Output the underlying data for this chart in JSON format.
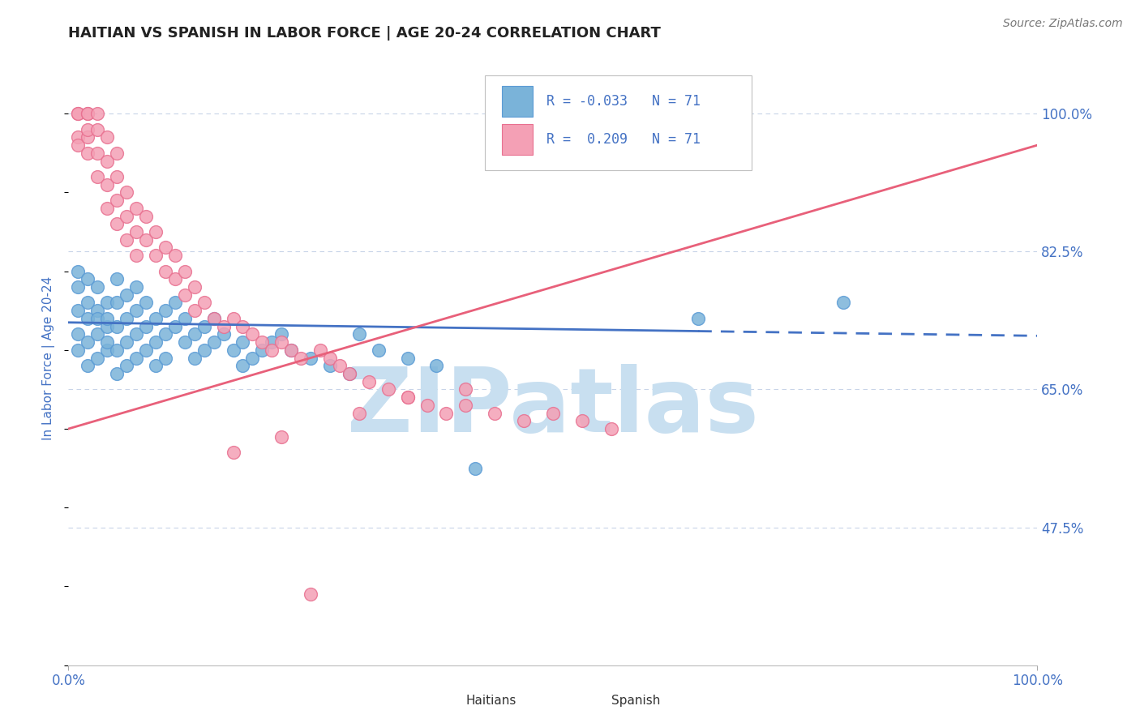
{
  "title": "HAITIAN VS SPANISH IN LABOR FORCE | AGE 20-24 CORRELATION CHART",
  "source_text": "Source: ZipAtlas.com",
  "ylabel": "In Labor Force | Age 20-24",
  "xlim": [
    0.0,
    1.0
  ],
  "ylim": [
    0.3,
    1.08
  ],
  "yticks": [
    0.475,
    0.65,
    0.825,
    1.0
  ],
  "ytick_labels": [
    "47.5%",
    "65.0%",
    "82.5%",
    "100.0%"
  ],
  "xticks": [
    0.0,
    1.0
  ],
  "xtick_labels": [
    "0.0%",
    "100.0%"
  ],
  "haitian_color": "#7ab3d9",
  "haitian_edge_color": "#5b9bd5",
  "spanish_color": "#f4a0b5",
  "spanish_edge_color": "#e87090",
  "haitian_line_color": "#4472c4",
  "spanish_line_color": "#e8607a",
  "watermark": "ZIPatlas",
  "watermark_color": "#c8dff0",
  "title_color": "#222222",
  "tick_label_color": "#4472c4",
  "background_color": "#ffffff",
  "grid_color": "#c8d4e8",
  "haitian_x": [
    0.01,
    0.01,
    0.01,
    0.01,
    0.01,
    0.02,
    0.02,
    0.02,
    0.02,
    0.02,
    0.03,
    0.03,
    0.03,
    0.03,
    0.03,
    0.04,
    0.04,
    0.04,
    0.04,
    0.04,
    0.05,
    0.05,
    0.05,
    0.05,
    0.05,
    0.06,
    0.06,
    0.06,
    0.06,
    0.07,
    0.07,
    0.07,
    0.07,
    0.08,
    0.08,
    0.08,
    0.09,
    0.09,
    0.09,
    0.1,
    0.1,
    0.1,
    0.11,
    0.11,
    0.12,
    0.12,
    0.13,
    0.13,
    0.14,
    0.14,
    0.15,
    0.15,
    0.16,
    0.17,
    0.18,
    0.18,
    0.19,
    0.2,
    0.21,
    0.22,
    0.23,
    0.25,
    0.27,
    0.29,
    0.3,
    0.32,
    0.35,
    0.38,
    0.42,
    0.65,
    0.8
  ],
  "haitian_y": [
    0.75,
    0.78,
    0.8,
    0.72,
    0.7,
    0.76,
    0.79,
    0.74,
    0.71,
    0.68,
    0.78,
    0.75,
    0.72,
    0.69,
    0.74,
    0.76,
    0.73,
    0.7,
    0.74,
    0.71,
    0.79,
    0.76,
    0.73,
    0.7,
    0.67,
    0.77,
    0.74,
    0.71,
    0.68,
    0.78,
    0.75,
    0.72,
    0.69,
    0.76,
    0.73,
    0.7,
    0.74,
    0.71,
    0.68,
    0.75,
    0.72,
    0.69,
    0.76,
    0.73,
    0.74,
    0.71,
    0.72,
    0.69,
    0.73,
    0.7,
    0.74,
    0.71,
    0.72,
    0.7,
    0.71,
    0.68,
    0.69,
    0.7,
    0.71,
    0.72,
    0.7,
    0.69,
    0.68,
    0.67,
    0.72,
    0.7,
    0.69,
    0.68,
    0.55,
    0.74,
    0.76
  ],
  "spanish_x": [
    0.01,
    0.01,
    0.01,
    0.01,
    0.02,
    0.02,
    0.02,
    0.02,
    0.02,
    0.03,
    0.03,
    0.03,
    0.03,
    0.04,
    0.04,
    0.04,
    0.04,
    0.05,
    0.05,
    0.05,
    0.05,
    0.06,
    0.06,
    0.06,
    0.07,
    0.07,
    0.07,
    0.08,
    0.08,
    0.09,
    0.09,
    0.1,
    0.1,
    0.11,
    0.11,
    0.12,
    0.12,
    0.13,
    0.13,
    0.14,
    0.15,
    0.16,
    0.17,
    0.18,
    0.19,
    0.2,
    0.21,
    0.22,
    0.23,
    0.24,
    0.26,
    0.27,
    0.28,
    0.29,
    0.31,
    0.33,
    0.35,
    0.37,
    0.39,
    0.41,
    0.44,
    0.47,
    0.5,
    0.53,
    0.56,
    0.17,
    0.22,
    0.3,
    0.35,
    0.41,
    0.25
  ],
  "spanish_y": [
    1.0,
    1.0,
    0.97,
    0.96,
    1.0,
    0.97,
    1.0,
    0.98,
    0.95,
    1.0,
    0.98,
    0.95,
    0.92,
    0.97,
    0.94,
    0.91,
    0.88,
    0.95,
    0.92,
    0.89,
    0.86,
    0.9,
    0.87,
    0.84,
    0.88,
    0.85,
    0.82,
    0.87,
    0.84,
    0.85,
    0.82,
    0.83,
    0.8,
    0.82,
    0.79,
    0.8,
    0.77,
    0.78,
    0.75,
    0.76,
    0.74,
    0.73,
    0.74,
    0.73,
    0.72,
    0.71,
    0.7,
    0.71,
    0.7,
    0.69,
    0.7,
    0.69,
    0.68,
    0.67,
    0.66,
    0.65,
    0.64,
    0.63,
    0.62,
    0.63,
    0.62,
    0.61,
    0.62,
    0.61,
    0.6,
    0.57,
    0.59,
    0.62,
    0.64,
    0.65,
    0.39
  ],
  "haitian_line_y0": 0.735,
  "haitian_line_y1": 0.718,
  "spanish_line_y0": 0.6,
  "spanish_line_y1": 0.96
}
